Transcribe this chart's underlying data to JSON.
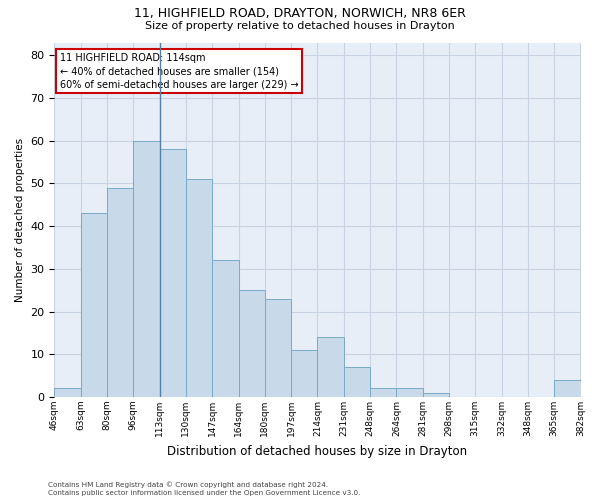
{
  "title_line1": "11, HIGHFIELD ROAD, DRAYTON, NORWICH, NR8 6ER",
  "title_line2": "Size of property relative to detached houses in Drayton",
  "xlabel": "Distribution of detached houses by size in Drayton",
  "ylabel": "Number of detached properties",
  "bar_values": [
    2,
    43,
    49,
    60,
    58,
    51,
    32,
    25,
    23,
    11,
    14,
    7,
    2,
    2,
    1,
    0,
    0,
    0,
    0,
    4
  ],
  "bar_labels": [
    "46sqm",
    "63sqm",
    "80sqm",
    "96sqm",
    "113sqm",
    "130sqm",
    "147sqm",
    "164sqm",
    "180sqm",
    "197sqm",
    "214sqm",
    "231sqm",
    "248sqm",
    "264sqm",
    "281sqm",
    "298sqm",
    "315sqm",
    "332sqm",
    "348sqm",
    "365sqm",
    "382sqm"
  ],
  "bar_color": "#c8d9ea",
  "bar_edge_color": "#7aaac8",
  "grid_color": "#c8d4e4",
  "background_color": "#e8eef8",
  "annotation_text": "11 HIGHFIELD ROAD: 114sqm\n← 40% of detached houses are smaller (154)\n60% of semi-detached houses are larger (229) →",
  "annotation_box_color": "white",
  "annotation_box_edge_color": "#cc0000",
  "vline_color": "#5580aa",
  "ylim": [
    0,
    83
  ],
  "yticks": [
    0,
    10,
    20,
    30,
    40,
    50,
    60,
    70,
    80
  ],
  "footer_line1": "Contains HM Land Registry data © Crown copyright and database right 2024.",
  "footer_line2": "Contains public sector information licensed under the Open Government Licence v3.0."
}
